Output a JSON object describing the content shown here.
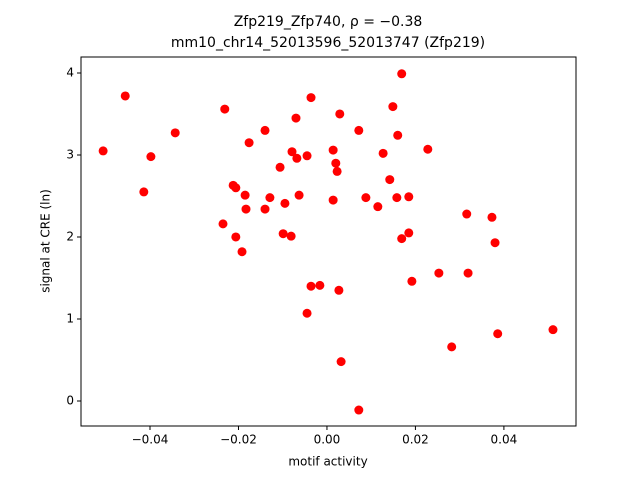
{
  "chart_data": {
    "type": "scatter",
    "title": "Zfp219_Zfp740, ρ = −0.38",
    "subtitle": "mm10_chr14_52013596_52013747 (Zfp219)",
    "x_label": "motif activity",
    "y_label": "signal at CRE (ln)",
    "color": "#ff0000",
    "x": [
      -0.0506,
      -0.0456,
      -0.0398,
      -0.0414,
      -0.0343,
      -0.0231,
      -0.0235,
      -0.0212,
      -0.0206,
      -0.0206,
      -0.0192,
      -0.0185,
      -0.0183,
      -0.0176,
      -0.014,
      -0.014,
      -0.0129,
      -0.0106,
      -0.0099,
      -0.0095,
      -0.0081,
      -0.0079,
      -0.007,
      -0.0068,
      -0.0063,
      -0.0045,
      -0.0045,
      -0.0036,
      -0.0036,
      -0.0016,
      0.0014,
      0.0014,
      0.002,
      0.0023,
      0.0029,
      0.0027,
      0.0032,
      0.0072,
      0.0072,
      0.0088,
      0.0115,
      0.0127,
      0.0142,
      0.0149,
      0.0158,
      0.016,
      0.0169,
      0.0169,
      0.0185,
      0.0185,
      0.0192,
      0.0228,
      0.0253,
      0.0282,
      0.0316,
      0.0319,
      0.0373,
      0.038,
      0.0386,
      0.0511
    ],
    "values": [
      3.05,
      3.72,
      2.98,
      2.55,
      3.27,
      3.56,
      2.16,
      2.63,
      2.6,
      2.0,
      1.82,
      2.51,
      2.34,
      3.15,
      3.3,
      2.34,
      2.48,
      2.85,
      2.04,
      2.41,
      2.01,
      3.04,
      3.45,
      2.96,
      2.51,
      2.99,
      1.07,
      3.7,
      1.4,
      1.41,
      3.06,
      2.45,
      2.9,
      2.8,
      3.5,
      1.35,
      0.48,
      3.3,
      -0.11,
      2.48,
      2.37,
      3.02,
      2.7,
      3.59,
      2.48,
      3.24,
      3.99,
      1.98,
      2.49,
      2.05,
      1.46,
      3.07,
      1.56,
      0.66,
      2.28,
      1.56,
      2.24,
      1.93,
      0.82,
      0.87
    ],
    "xlim": [
      -0.0556,
      0.0563
    ],
    "ylim": [
      -0.305,
      4.195
    ],
    "xticks": [
      {
        "value": -0.04,
        "label": "−0.04"
      },
      {
        "value": -0.02,
        "label": "−0.02"
      },
      {
        "value": 0,
        "label": "0.00"
      },
      {
        "value": 0.02,
        "label": "0.02"
      },
      {
        "value": 0.04,
        "label": "0.04"
      }
    ],
    "yticks": [
      0,
      1,
      2,
      3,
      4
    ],
    "grid": false
  }
}
